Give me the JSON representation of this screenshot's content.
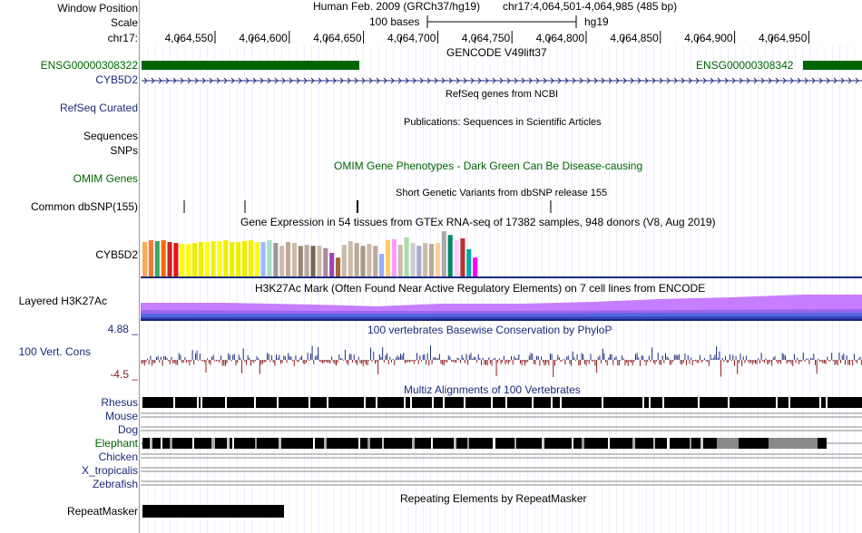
{
  "header": {
    "window_position_label": "Window Position",
    "scale_label": "Scale",
    "chrom_label": "chr17:",
    "assembly": "Human Feb. 2009 (GRCh37/hg19)",
    "position": "chr17:4,064,501-4,064,985 (485 bp)",
    "scale_text": "100 bases",
    "scale_db": "hg19",
    "ruler_ticks": [
      "4,064,550",
      "4,064,600",
      "4,064,650",
      "4,064,700",
      "4,064,750",
      "4,064,800",
      "4,064,850",
      "4,064,900",
      "4,064,950"
    ]
  },
  "gencode": {
    "title": "GENCODE V49lift37",
    "gene_left": "ENSG00000308322",
    "gene_right": "ENSG00000308342",
    "transcript": "CYB5D2"
  },
  "refseq": {
    "title": "RefSeq genes from NCBI",
    "label": "RefSeq Curated"
  },
  "publications": {
    "title": "Publications: Sequences in Scientific Articles",
    "label_1": "Sequences",
    "label_2": "SNPs"
  },
  "omim": {
    "title": "OMIM Gene Phenotypes - Dark Green Can Be Disease-causing",
    "label": "OMIM Genes"
  },
  "dbsnp": {
    "title": "Short Genetic Variants from dbSNP release 155",
    "label": "Common dbSNP(155)"
  },
  "gtex": {
    "title": "Gene Expression in 54 tissues from GTEx RNA-seq of 17382 samples, 948 donors (V8, Aug 2019)",
    "label": "CYB5D2",
    "bars": [
      {
        "c": "#FFAA55",
        "h": 0.73
      },
      {
        "c": "#FF7733",
        "h": 0.77
      },
      {
        "c": "#33AA66",
        "h": 0.75
      },
      {
        "c": "#FF6600",
        "h": 0.77
      },
      {
        "c": "#CC2222",
        "h": 0.73
      },
      {
        "c": "#EE1111",
        "h": 0.71
      },
      {
        "c": "#FFFF00",
        "h": 0.69
      },
      {
        "c": "#FFFF00",
        "h": 0.69
      },
      {
        "c": "#EEEE00",
        "h": 0.71
      },
      {
        "c": "#EEEE00",
        "h": 0.73
      },
      {
        "c": "#FFFF00",
        "h": 0.73
      },
      {
        "c": "#EEEE11",
        "h": 0.75
      },
      {
        "c": "#FFFF00",
        "h": 0.75
      },
      {
        "c": "#EEEE00",
        "h": 0.77
      },
      {
        "c": "#EEEE00",
        "h": 0.73
      },
      {
        "c": "#EEEE00",
        "h": 0.73
      },
      {
        "c": "#EEEE00",
        "h": 0.75
      },
      {
        "c": "#EEEE11",
        "h": 0.77
      },
      {
        "c": "#FFFF00",
        "h": 0.73
      },
      {
        "c": "#99BBFF",
        "h": 0.73
      },
      {
        "c": "#AADDCC",
        "h": 0.77
      },
      {
        "c": "#999999",
        "h": 0.71
      },
      {
        "c": "#CCBBAA",
        "h": 0.65
      },
      {
        "c": "#BBAA99",
        "h": 0.73
      },
      {
        "c": "#CCBBAA",
        "h": 0.71
      },
      {
        "c": "#998877",
        "h": 0.65
      },
      {
        "c": "#BBAA99",
        "h": 0.67
      },
      {
        "c": "#776655",
        "h": 0.65
      },
      {
        "c": "#CCBBAA",
        "h": 0.65
      },
      {
        "c": "#AA8899",
        "h": 0.6
      },
      {
        "c": "#9944BB",
        "h": 0.5
      },
      {
        "c": "#AA6633",
        "h": 0.4
      },
      {
        "c": "#CCBBAA",
        "h": 0.67
      },
      {
        "c": "#CCBBAA",
        "h": 0.75
      },
      {
        "c": "#BBAA99",
        "h": 0.71
      },
      {
        "c": "#AA9988",
        "h": 0.65
      },
      {
        "c": "#CCBBAA",
        "h": 0.69
      },
      {
        "c": "#BBAA99",
        "h": 0.65
      },
      {
        "c": "#99AAFF",
        "h": 0.48
      },
      {
        "c": "#FFCC66",
        "h": 0.77
      },
      {
        "c": "#FF99FF",
        "h": 0.79
      },
      {
        "c": "#CCBBAA",
        "h": 0.67
      },
      {
        "c": "#AADDAA",
        "h": 0.83
      },
      {
        "c": "#CCCCCC",
        "h": 0.71
      },
      {
        "c": "#AAAACC",
        "h": 0.65
      },
      {
        "c": "#CCBBAA",
        "h": 0.71
      },
      {
        "c": "#BBAA99",
        "h": 0.69
      },
      {
        "c": "#FFCC99",
        "h": 0.71
      },
      {
        "c": "#AAAAAA",
        "h": 0.96
      },
      {
        "c": "#008866",
        "h": 0.88
      },
      {
        "c": "#FFCCFF",
        "h": 0.77
      },
      {
        "c": "#BB3333",
        "h": 0.81
      },
      {
        "c": "#00AAAA",
        "h": 0.58
      },
      {
        "c": "#FF00FF",
        "h": 0.4
      }
    ]
  },
  "h3k27ac": {
    "title": "H3K27Ac Mark (Often Found Near Active Regulatory Elements) on 7 cell lines from ENCODE",
    "label": "Layered H3K27Ac"
  },
  "phylop": {
    "title": "100 vertebrates Basewise Conservation by PhyloP",
    "label": "100 Vert. Cons",
    "max_label": "4.88 _",
    "min_label": "-4.5 _"
  },
  "multiz": {
    "title": "Multiz Alignments of 100 Vertebrates",
    "species": [
      "Rhesus",
      "Mouse",
      "Dog",
      "Elephant",
      "Chicken",
      "X_tropicalis",
      "Zebrafish"
    ]
  },
  "repeatmasker": {
    "title": "Repeating Elements by RepeatMasker",
    "label": "RepeatMasker"
  },
  "colors": {
    "gencode_green": "#006400",
    "link_blue": "#1a2a7a",
    "phylop_pos": "#1a2a7a",
    "phylop_neg": "#8b1a1a"
  }
}
